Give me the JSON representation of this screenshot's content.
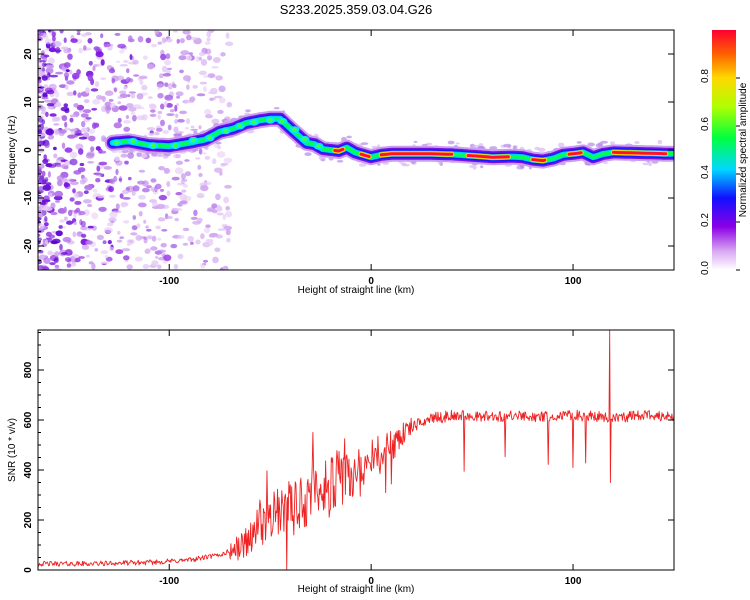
{
  "title": "S233.2025.359.03.04.G26",
  "chart_data": [
    {
      "type": "heatmap",
      "name": "spectrogram",
      "xlabel": "Height of straight line (km)",
      "ylabel": "Frequency (Hz)",
      "xlim": [
        -165,
        150
      ],
      "ylim": [
        -25,
        25
      ],
      "xticks": [
        -100,
        0,
        100
      ],
      "yticks": [
        -20,
        -10,
        0,
        10,
        20
      ],
      "ridge": {
        "x": [
          -128,
          -120,
          -110,
          -100,
          -90,
          -82,
          -75,
          -68,
          -62,
          -55,
          -50,
          -45,
          -40,
          -36,
          -32,
          -28,
          -24,
          -20,
          -16,
          -12,
          -8,
          -4,
          0,
          5,
          10,
          20,
          30,
          40,
          50,
          60,
          70,
          75,
          80,
          85,
          90,
          95,
          100,
          105,
          110,
          115,
          120,
          130,
          140,
          148
        ],
        "y": [
          1.5,
          1.8,
          1.0,
          0.8,
          1.5,
          2.2,
          3.8,
          4.5,
          5.6,
          6.2,
          6.5,
          6.5,
          4.5,
          3.0,
          1.5,
          1.2,
          0.2,
          0.0,
          -0.2,
          0.5,
          -0.5,
          -1.0,
          -1.5,
          -1.0,
          -0.8,
          -0.8,
          -0.8,
          -0.9,
          -1.2,
          -1.5,
          -1.4,
          -1.5,
          -2.0,
          -2.2,
          -1.8,
          -1.0,
          -0.8,
          -0.5,
          -1.5,
          -0.8,
          -0.5,
          -0.6,
          -0.7,
          -0.8
        ]
      },
      "colorbar": {
        "label": "Normalized spectral amplitude",
        "ticks": [
          "0.0",
          "0.2",
          "0.4",
          "0.6",
          "0.8"
        ],
        "tick_values": [
          0.0,
          0.2,
          0.4,
          0.6,
          0.8
        ],
        "range": [
          0,
          1
        ]
      }
    },
    {
      "type": "line",
      "name": "snr",
      "xlabel": "Height of straight line (km)",
      "ylabel": "SNR (10 * v/v)",
      "xlim": [
        -165,
        150
      ],
      "ylim": [
        0,
        960
      ],
      "xticks": [
        -100,
        0,
        100
      ],
      "yticks": [
        0,
        200,
        400,
        600,
        800
      ],
      "color": "#ee2222",
      "series": [
        {
          "name": "SNR",
          "x": [
            -165,
            -140,
            -110,
            -90,
            -75,
            -65,
            -58,
            -50,
            -45,
            -40,
            -35,
            -30,
            -25,
            -20,
            -15,
            -10,
            -5,
            0,
            5,
            10,
            15,
            20,
            25,
            30,
            35,
            40,
            50,
            60,
            70,
            80,
            90,
            100,
            110,
            120,
            130,
            140,
            150
          ],
          "y": [
            25,
            25,
            30,
            40,
            60,
            90,
            150,
            200,
            230,
            240,
            270,
            300,
            330,
            340,
            360,
            380,
            400,
            430,
            470,
            500,
            540,
            570,
            590,
            610,
            610,
            620,
            615,
            615,
            615,
            615,
            610,
            620,
            615,
            610,
            615,
            620,
            615
          ]
        }
      ],
      "spikes": [
        {
          "x": -55,
          "y": 280
        },
        {
          "x": -50,
          "y": 260
        },
        {
          "x": -29,
          "y": 550
        },
        {
          "x": -13,
          "y": 525
        },
        {
          "x": 118,
          "y": 960
        },
        {
          "x": 118.6,
          "y": 350
        },
        {
          "x": 100,
          "y": 410
        },
        {
          "x": 46,
          "y": 395
        }
      ]
    }
  ]
}
